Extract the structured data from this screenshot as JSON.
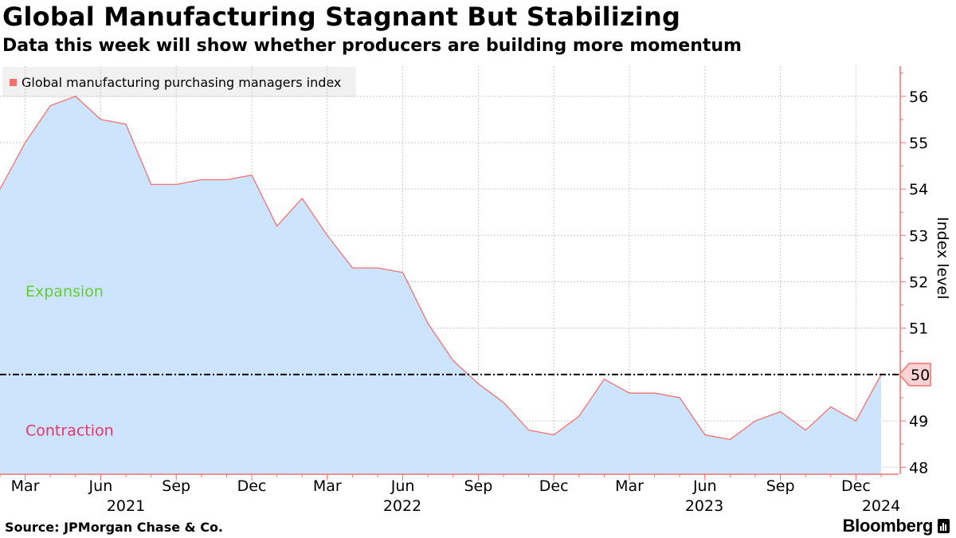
{
  "title": "Global Manufacturing Stagnant But Stabilizing",
  "subtitle": "Data this week will show whether producers are building more momentum",
  "source": "Source: JPMorgan Chase & Co.",
  "brand": "Bloomberg",
  "colors": {
    "line": "#f4716e",
    "area": "#cce4fd",
    "expansion": "#66cc33",
    "contraction": "#ee3366",
    "grid": "#c8c8c8",
    "axis": "#f4716e"
  },
  "chart_data": {
    "type": "area",
    "title": "Global Manufacturing Stagnant But Stabilizing",
    "subtitle": "Data this week will show whether producers are building more momentum",
    "ylabel": "Index level",
    "xlabel": "",
    "ylim": [
      47.85,
      56.65
    ],
    "yticks": [
      48,
      49,
      50,
      51,
      52,
      53,
      54,
      55,
      56
    ],
    "legend": [
      {
        "name": "Global manufacturing purchasing managers index",
        "position": "top-left"
      }
    ],
    "threshold": {
      "value": 50,
      "label": "50"
    },
    "annotations": [
      {
        "text": "Expansion",
        "y": 51.8,
        "color": "#66cc33"
      },
      {
        "text": "Contraction",
        "y": 48.8,
        "color": "#ee3366"
      }
    ],
    "x_ticks": [
      {
        "label": "Mar",
        "index": 1,
        "year": "2021"
      },
      {
        "label": "Jun",
        "index": 4
      },
      {
        "label": "Sep",
        "index": 7
      },
      {
        "label": "Dec",
        "index": 10
      },
      {
        "label": "Mar",
        "index": 13,
        "year": "2022"
      },
      {
        "label": "Jun",
        "index": 16
      },
      {
        "label": "Sep",
        "index": 19
      },
      {
        "label": "Dec",
        "index": 22
      },
      {
        "label": "Mar",
        "index": 25
      },
      {
        "label": "Jun",
        "index": 28,
        "year": "2023"
      },
      {
        "label": "Sep",
        "index": 31
      },
      {
        "label": "Dec",
        "index": 34
      },
      {
        "label": "",
        "index": 35,
        "year": "2024"
      }
    ],
    "series": [
      {
        "name": "Global manufacturing purchasing managers index",
        "x": [
          "2021-02",
          "2021-03",
          "2021-04",
          "2021-05",
          "2021-06",
          "2021-07",
          "2021-08",
          "2021-09",
          "2021-10",
          "2021-11",
          "2021-12",
          "2022-01",
          "2022-02",
          "2022-03",
          "2022-04",
          "2022-05",
          "2022-06",
          "2022-07",
          "2022-08",
          "2022-09",
          "2022-10",
          "2022-11",
          "2022-12",
          "2023-01",
          "2023-02",
          "2023-03",
          "2023-04",
          "2023-05",
          "2023-06",
          "2023-07",
          "2023-08",
          "2023-09",
          "2023-10",
          "2023-11",
          "2023-12",
          "2024-01"
        ],
        "values": [
          54.0,
          55.0,
          55.8,
          56.0,
          55.5,
          55.4,
          54.1,
          54.1,
          54.2,
          54.2,
          54.3,
          53.2,
          53.8,
          53.0,
          52.3,
          52.3,
          52.2,
          51.1,
          50.3,
          49.8,
          49.4,
          48.8,
          48.7,
          49.1,
          49.9,
          49.6,
          49.6,
          49.5,
          48.7,
          48.6,
          49.0,
          49.2,
          48.8,
          49.3,
          49.0,
          50.0
        ]
      }
    ]
  }
}
